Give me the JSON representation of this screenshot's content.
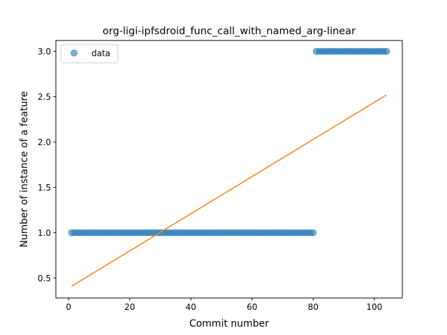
{
  "chart_data": {
    "type": "scatter",
    "title": "org-ligi-ipfsdroid_func_call_with_named_arg-linear",
    "xlabel": "Commit number",
    "ylabel": "Number of instance of a feature",
    "xlim": [
      -4.15,
      109.15
    ],
    "ylim": [
      0.28,
      3.12
    ],
    "xticks": [
      0,
      20,
      40,
      60,
      80,
      100
    ],
    "yticks": [
      0.5,
      1.0,
      1.5,
      2.0,
      2.5,
      3.0
    ],
    "xtick_labels": [
      "0",
      "20",
      "40",
      "60",
      "80",
      "100"
    ],
    "ytick_labels": [
      "0.5",
      "1.0",
      "1.5",
      "2.0",
      "2.5",
      "3.0"
    ],
    "grid": false,
    "legend": {
      "position": "top-left",
      "entries": [
        "data"
      ]
    },
    "series": [
      {
        "name": "data",
        "kind": "scatter",
        "color": "#1f77b4",
        "alpha": 0.6,
        "segments": [
          {
            "x_start": 1,
            "x_end": 80,
            "y": 1.0
          },
          {
            "x_start": 81,
            "x_end": 104,
            "y": 3.0
          }
        ]
      },
      {
        "kind": "line",
        "color": "#ff7f0e",
        "x": [
          1,
          104
        ],
        "y": [
          0.41,
          2.52
        ]
      }
    ]
  }
}
